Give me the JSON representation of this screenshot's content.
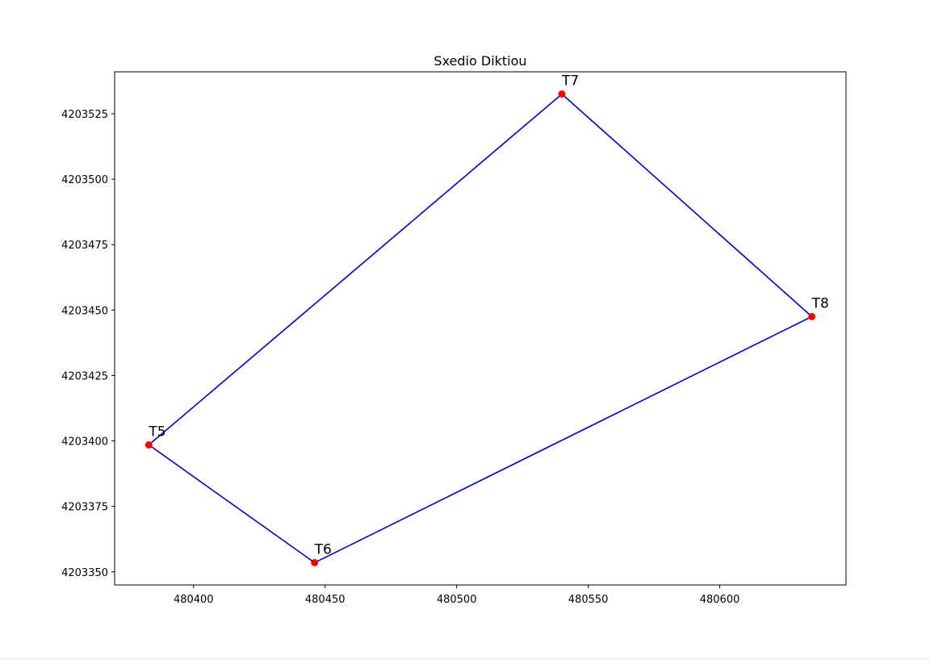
{
  "chart_data": {
    "type": "line",
    "title": "Sxedio Diktiou",
    "xlabel": "",
    "ylabel": "",
    "xlim": [
      480370,
      480648
    ],
    "ylim": [
      4203345,
      4203541
    ],
    "x_ticks": [
      480400,
      480450,
      480500,
      480550,
      480600
    ],
    "y_ticks": [
      4203350,
      4203375,
      4203400,
      4203425,
      4203450,
      4203475,
      4203500,
      4203525
    ],
    "x_tick_labels": [
      "480400",
      "480450",
      "480500",
      "480550",
      "480600"
    ],
    "y_tick_labels": [
      "4203350",
      "4203375",
      "4203400",
      "4203425",
      "4203450",
      "4203475",
      "4203500",
      "4203525"
    ],
    "grid": false,
    "points": [
      {
        "name": "T5",
        "x": 480383,
        "y": 4203398.5
      },
      {
        "name": "T6",
        "x": 480446,
        "y": 4203353.5
      },
      {
        "name": "T8",
        "x": 480635,
        "y": 4203447.5
      },
      {
        "name": "T7",
        "x": 480540,
        "y": 4203532.5
      }
    ],
    "closed_polygon": true,
    "line_color": "#0000cc",
    "marker_color": "#ff0000"
  }
}
